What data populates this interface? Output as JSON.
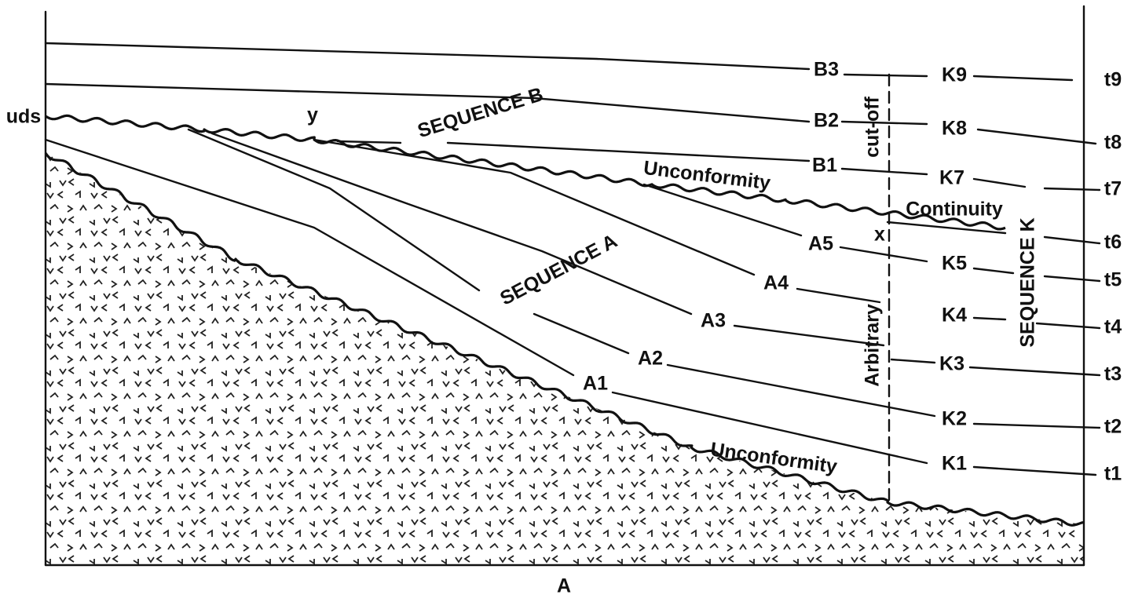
{
  "left_label": "uds",
  "point_y": "y",
  "point_x": "x",
  "sequence_b": "SEQUENCE B",
  "sequence_a": "SEQUENCE A",
  "sequence_k": "SEQUENCE K",
  "unconformities": [
    "Unconformity",
    "Unconformity"
  ],
  "continuity": "Continuity",
  "cutoff": [
    "cut-off",
    "Arbitrary"
  ],
  "b_surfaces": [
    "B1",
    "B2",
    "B3"
  ],
  "a_surfaces": [
    "A1",
    "A2",
    "A3",
    "A4",
    "A5"
  ],
  "k_surfaces": [
    "K1",
    "K2",
    "K3",
    "K4",
    "K5",
    "K7",
    "K8",
    "K9"
  ],
  "time_lines": [
    "t1",
    "t2",
    "t3",
    "t4",
    "t5",
    "t6",
    "t7",
    "t8",
    "t9"
  ],
  "bottom_label": "A"
}
